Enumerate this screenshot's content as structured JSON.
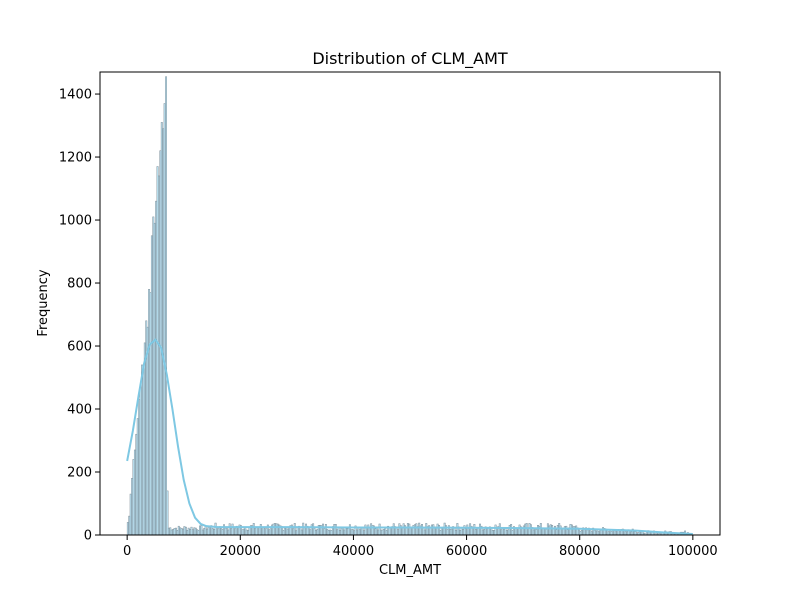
{
  "chart_data": {
    "type": "bar",
    "title": "Distribution of CLM_AMT",
    "xlabel": "CLM_AMT",
    "ylabel": "Frequency",
    "xlim": [
      -4800,
      104800
    ],
    "ylim": [
      0,
      1470
    ],
    "x_ticks": [
      0,
      20000,
      40000,
      60000,
      80000,
      100000
    ],
    "x_tick_labels": [
      "0",
      "20000",
      "40000",
      "60000",
      "80000",
      "100000"
    ],
    "y_ticks": [
      0,
      200,
      400,
      600,
      800,
      1000,
      1200,
      1400
    ],
    "y_tick_labels": [
      "0",
      "200",
      "400",
      "600",
      "800",
      "1000",
      "1200",
      "1400"
    ],
    "grid": false,
    "bar_color": "#87CEEB",
    "bar_edge_color": "#7f8f99",
    "kde_color": "#7ec8e3",
    "histogram_bins": {
      "bin_width": 250,
      "peak_region": [
        {
          "x": 0,
          "count": 40
        },
        {
          "x": 250,
          "count": 60
        },
        {
          "x": 500,
          "count": 130
        },
        {
          "x": 750,
          "count": 180
        },
        {
          "x": 1000,
          "count": 240
        },
        {
          "x": 1250,
          "count": 270
        },
        {
          "x": 1500,
          "count": 320
        },
        {
          "x": 1750,
          "count": 370
        },
        {
          "x": 2000,
          "count": 430
        },
        {
          "x": 2250,
          "count": 470
        },
        {
          "x": 2500,
          "count": 540
        },
        {
          "x": 2750,
          "count": 530
        },
        {
          "x": 3000,
          "count": 610
        },
        {
          "x": 3250,
          "count": 680
        },
        {
          "x": 3500,
          "count": 660
        },
        {
          "x": 3750,
          "count": 780
        },
        {
          "x": 4000,
          "count": 770
        },
        {
          "x": 4250,
          "count": 950
        },
        {
          "x": 4500,
          "count": 1010
        },
        {
          "x": 4750,
          "count": 990
        },
        {
          "x": 5000,
          "count": 1060
        },
        {
          "x": 5250,
          "count": 1170
        },
        {
          "x": 5500,
          "count": 1140
        },
        {
          "x": 5750,
          "count": 1220
        },
        {
          "x": 6000,
          "count": 1310
        },
        {
          "x": 6250,
          "count": 1290
        },
        {
          "x": 6500,
          "count": 1370
        },
        {
          "x": 6750,
          "count": 1455
        },
        {
          "x": 7000,
          "count": 140
        }
      ],
      "tail": {
        "x_start": 7250,
        "x_end": 99750,
        "counts_by_range": [
          {
            "from": 7250,
            "to": 14000,
            "count_min": 14,
            "count_max": 30
          },
          {
            "from": 14000,
            "to": 80000,
            "count_min": 14,
            "count_max": 38
          },
          {
            "from": 80000,
            "to": 90000,
            "count_min": 10,
            "count_max": 24
          },
          {
            "from": 90000,
            "to": 99750,
            "count_min": 4,
            "count_max": 14
          }
        ]
      }
    },
    "kde_curve": [
      {
        "x": 0,
        "y": 235
      },
      {
        "x": 1000,
        "y": 330
      },
      {
        "x": 2000,
        "y": 440
      },
      {
        "x": 3000,
        "y": 545
      },
      {
        "x": 4000,
        "y": 605
      },
      {
        "x": 5000,
        "y": 620
      },
      {
        "x": 6000,
        "y": 595
      },
      {
        "x": 7000,
        "y": 510
      },
      {
        "x": 8000,
        "y": 400
      },
      {
        "x": 9000,
        "y": 280
      },
      {
        "x": 10000,
        "y": 175
      },
      {
        "x": 11000,
        "y": 100
      },
      {
        "x": 12000,
        "y": 55
      },
      {
        "x": 13000,
        "y": 35
      },
      {
        "x": 14000,
        "y": 28
      },
      {
        "x": 16000,
        "y": 25
      },
      {
        "x": 20000,
        "y": 25
      },
      {
        "x": 30000,
        "y": 25
      },
      {
        "x": 40000,
        "y": 24
      },
      {
        "x": 50000,
        "y": 24
      },
      {
        "x": 60000,
        "y": 23
      },
      {
        "x": 70000,
        "y": 22
      },
      {
        "x": 80000,
        "y": 20
      },
      {
        "x": 90000,
        "y": 14
      },
      {
        "x": 95000,
        "y": 8
      },
      {
        "x": 100000,
        "y": 3
      }
    ]
  }
}
